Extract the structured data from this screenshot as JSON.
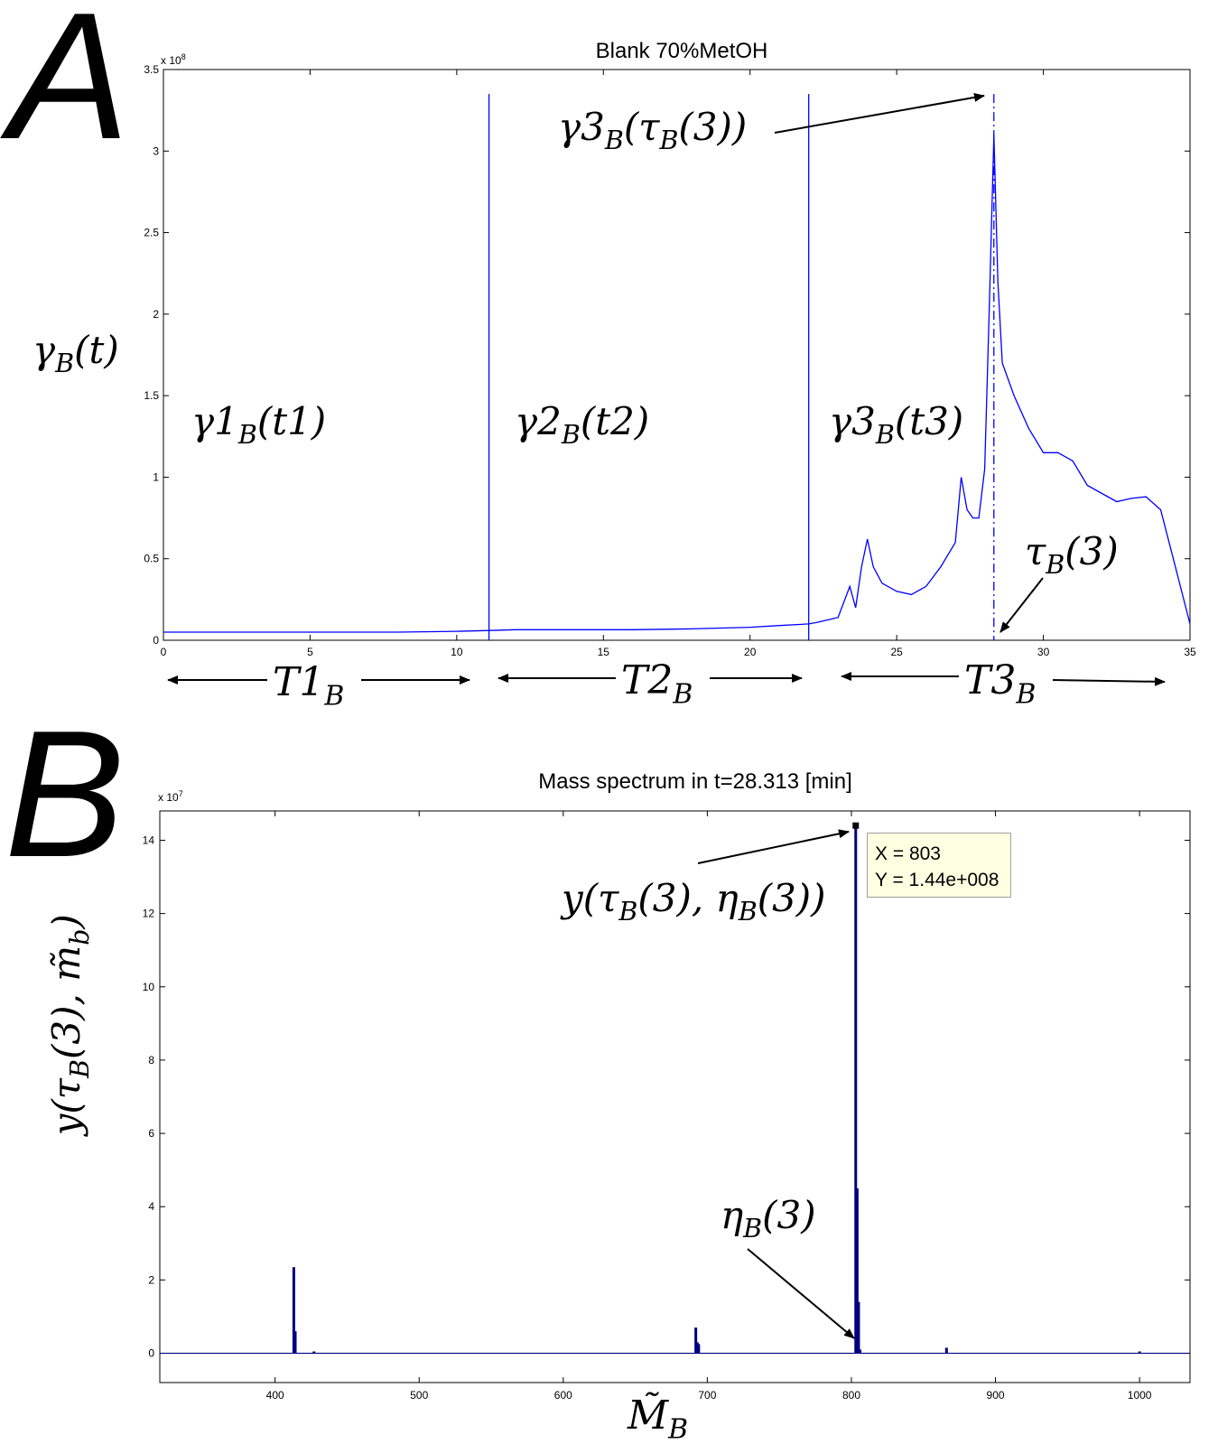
{
  "panel_letters": {
    "a": "A",
    "b": "B"
  },
  "chart_data": [
    {
      "type": "line",
      "title": "Blank 70%MetOH",
      "ylabel": "γ_B(t)",
      "xlabel": "",
      "y_exponent_label": "x 10",
      "y_exponent_power": "8",
      "xlim": [
        0,
        35
      ],
      "ylim": [
        0,
        3.5
      ],
      "xticks": [
        "0",
        "5",
        "10",
        "15",
        "20",
        "25",
        "30",
        "35"
      ],
      "yticks": [
        "0",
        "0.5",
        "1",
        "1.5",
        "2",
        "2.5",
        "3",
        "3.5"
      ],
      "grid": false,
      "series": [
        {
          "color": "#0000ff",
          "x": [
            0,
            2,
            4,
            6,
            8,
            10,
            11.1,
            12,
            14,
            16,
            18,
            20,
            21,
            22,
            22.3,
            23,
            23.4,
            23.6,
            23.8,
            24.0,
            24.2,
            24.5,
            25,
            25.5,
            26,
            26.5,
            27,
            27.2,
            27.4,
            27.6,
            27.8,
            28.0,
            28.15,
            28.313,
            28.45,
            28.6,
            29,
            29.5,
            30,
            30.5,
            31,
            31.5,
            32,
            32.5,
            33,
            33.5,
            34,
            34.5,
            35
          ],
          "y": [
            0.05,
            0.05,
            0.05,
            0.05,
            0.05,
            0.055,
            0.06,
            0.065,
            0.065,
            0.065,
            0.07,
            0.08,
            0.09,
            0.1,
            0.11,
            0.14,
            0.33,
            0.2,
            0.45,
            0.62,
            0.45,
            0.35,
            0.3,
            0.28,
            0.33,
            0.45,
            0.6,
            1.0,
            0.8,
            0.75,
            0.75,
            1.05,
            2.0,
            3.1,
            2.2,
            1.7,
            1.5,
            1.3,
            1.15,
            1.15,
            1.1,
            0.95,
            0.9,
            0.85,
            0.87,
            0.88,
            0.8,
            0.45,
            0.1
          ]
        }
      ],
      "vertical_lines": [
        {
          "x": 11.1,
          "style": "solid"
        },
        {
          "x": 22.0,
          "style": "solid"
        },
        {
          "x": 28.313,
          "style": "dashdot"
        }
      ],
      "annotations": {
        "g1": {
          "base": "γ1",
          "sub": "B",
          "arg": "(t1)"
        },
        "g2": {
          "base": "γ2",
          "sub": "B",
          "arg": "(t2)"
        },
        "g3": {
          "base": "γ3",
          "sub": "B",
          "arg": "(t3)"
        },
        "peak": {
          "base": "γ3",
          "sub": "B",
          "arg_pre": "(τ",
          "arg_sub": "B",
          "arg_post": "(3))"
        },
        "tau": {
          "base": "τ",
          "sub": "B",
          "arg": "(3)"
        },
        "T1": {
          "base": "T1",
          "sub": "B"
        },
        "T2": {
          "base": "T2",
          "sub": "B"
        },
        "T3": {
          "base": "T3",
          "sub": "B"
        }
      }
    },
    {
      "type": "bar",
      "title": "Mass spectrum in t=28.313 [min]",
      "xlabel": "M̃_B",
      "ylabel": "y(τ_B(3), m̃_b)",
      "y_exponent_label": "x 10",
      "y_exponent_power": "7",
      "xlim": [
        320,
        1035
      ],
      "ylim": [
        -0.8,
        14.8
      ],
      "xticks": [
        "400",
        "500",
        "600",
        "700",
        "800",
        "900",
        "1000"
      ],
      "yticks": [
        "0",
        "2",
        "4",
        "6",
        "8",
        "10",
        "12",
        "14"
      ],
      "grid": false,
      "series": [
        {
          "color": "#00007f",
          "x": [
            413,
            414,
            427,
            692,
            693,
            694,
            803,
            804,
            805,
            806,
            866,
            1000
          ],
          "y": [
            2.35,
            0.6,
            0.05,
            0.7,
            0.3,
            0.25,
            14.4,
            4.5,
            1.4,
            0.1,
            0.15,
            0.05
          ]
        }
      ],
      "datatip": {
        "x_text": "X = 803",
        "y_text": "Y = 1.44e+008",
        "x": 803,
        "y": 14.4
      },
      "annotations": {
        "peak": {
          "pre": "y(τ",
          "sub1": "B",
          "mid": "(3), η",
          "sub2": "B",
          "post": "(3))"
        },
        "eta": {
          "base": "η",
          "sub": "B",
          "arg": "(3)"
        },
        "ylabel_parts": {
          "pre": "y(τ",
          "sub1": "B",
          "mid": "(3), m̃",
          "sub2": "b",
          "post": ")"
        },
        "xlabel_parts": {
          "base": "M̃",
          "sub": "B"
        }
      }
    }
  ]
}
